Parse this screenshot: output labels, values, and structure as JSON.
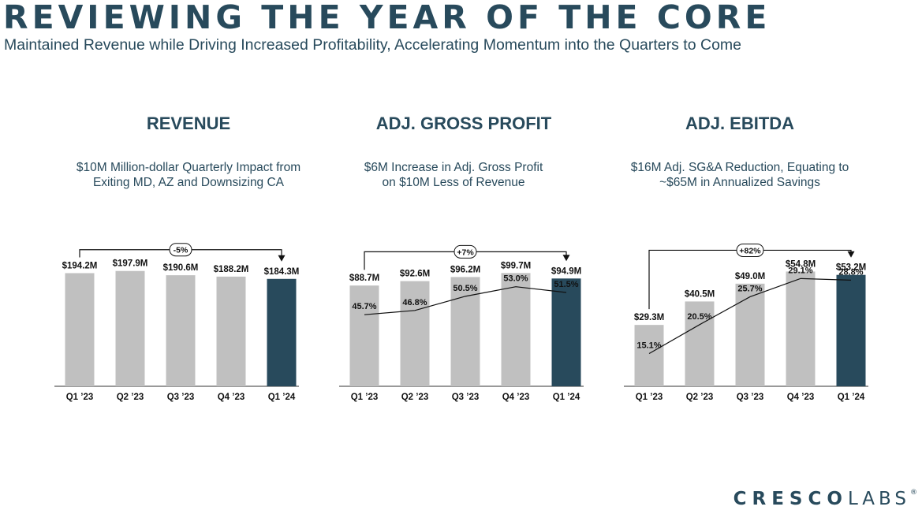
{
  "header": {
    "title": "REVIEWING THE YEAR OF THE CORE",
    "subtitle": "Maintained Revenue while Driving Increased Profitability, Accelerating Momentum into the Quarters to Come"
  },
  "logo": {
    "bold": "CRESCO",
    "light": "LABS",
    "mark": "®"
  },
  "colors": {
    "bar_gray": "#c0c0c0",
    "bar_highlight": "#284a5c",
    "text_navy": "#284a5c"
  },
  "chart_data": [
    {
      "type": "bar",
      "title": "REVENUE",
      "description": [
        "$10M Million-dollar Quarterly Impact from",
        "Exiting MD, AZ and Downsizing CA"
      ],
      "categories": [
        "Q1 ’23",
        "Q2 ’23",
        "Q3 ’23",
        "Q4 ’23",
        "Q1 ’24"
      ],
      "values": [
        194.2,
        197.9,
        190.6,
        188.2,
        184.3
      ],
      "value_labels": [
        "$194.2M",
        "$197.9M",
        "$190.6M",
        "$188.2M",
        "$184.3M"
      ],
      "ylim": [
        0,
        230
      ],
      "highlight_index": 4,
      "change_label": "-5%",
      "margin_values": null,
      "margin_labels": null
    },
    {
      "type": "bar",
      "title": "ADJ. GROSS PROFIT",
      "description": [
        "$6M Increase in Adj. Gross Profit",
        "on $10M Less of Revenue"
      ],
      "categories": [
        "Q1 ’23",
        "Q2 ’23",
        "Q3 ’23",
        "Q4 ’23",
        "Q1 ’24"
      ],
      "values": [
        88.7,
        92.6,
        96.2,
        99.7,
        94.9
      ],
      "value_labels": [
        "$88.7M",
        "$92.6M",
        "$96.2M",
        "$99.7M",
        "$94.9M"
      ],
      "ylim": [
        0,
        118
      ],
      "highlight_index": 4,
      "change_label": "+7%",
      "margin_values": [
        45.7,
        46.8,
        50.5,
        53.0,
        51.5
      ],
      "margin_labels": [
        "45.7%",
        "46.8%",
        "50.5%",
        "53.0%",
        "51.5%"
      ],
      "margin_ylim": [
        27,
        62
      ]
    },
    {
      "type": "bar",
      "title": "ADJ. EBITDA",
      "description": [
        "$16M Adj. SG&A Reduction, Equating to",
        "~$65M in Annualized Savings"
      ],
      "categories": [
        "Q1 ’23",
        "Q2 ’23",
        "Q3 ’23",
        "Q4 ’23",
        "Q1 ’24"
      ],
      "values": [
        29.3,
        40.5,
        49.0,
        54.8,
        53.2
      ],
      "value_labels": [
        "$29.3M",
        "$40.5M",
        "$49.0M",
        "$54.8M",
        "$53.2M"
      ],
      "ylim": [
        0,
        64
      ],
      "highlight_index": 4,
      "change_label": "+82%",
      "margin_values": [
        15.1,
        20.5,
        25.7,
        29.1,
        28.8
      ],
      "margin_labels": [
        "15.1%",
        "20.5%",
        "25.7%",
        "29.1%",
        "28.8%"
      ],
      "margin_ylim": [
        9,
        34
      ]
    }
  ]
}
